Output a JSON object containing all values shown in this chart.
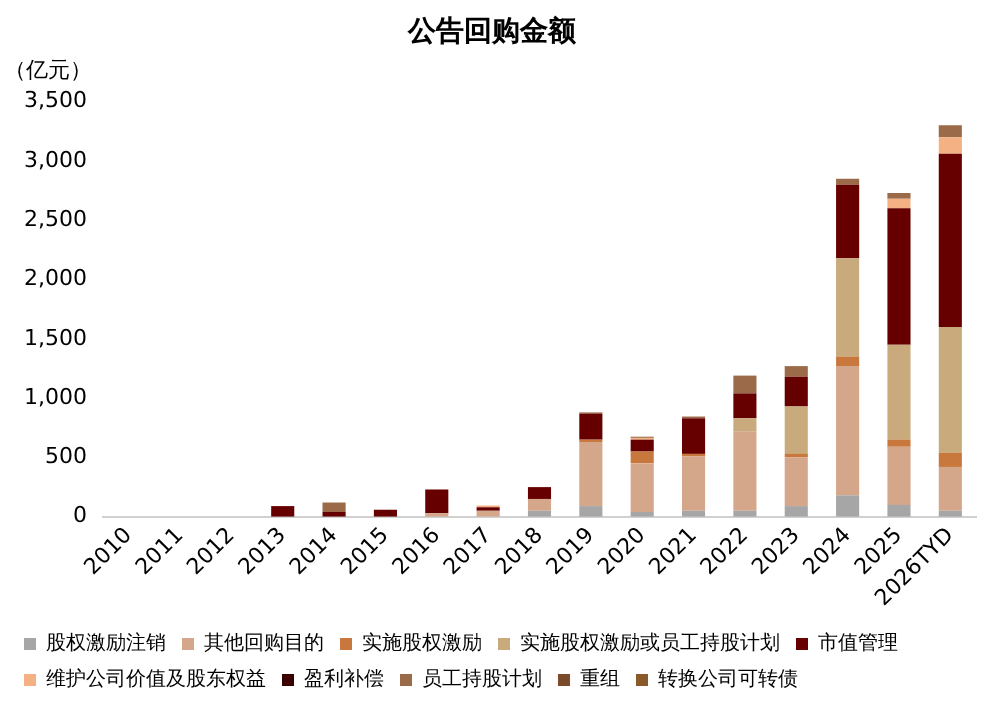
{
  "chart_data": {
    "type": "bar",
    "title": "公告回购金额",
    "ylabel": "（亿元）",
    "stacked": true,
    "grid": false,
    "legend": "bottom",
    "categories": [
      "2010",
      "2011",
      "2012",
      "2013",
      "2014",
      "2015",
      "2016",
      "2017",
      "2018",
      "2019",
      "2020",
      "2021",
      "2022",
      "2023",
      "2024",
      "2025",
      "2026TYD"
    ],
    "ylim": [
      0,
      3500
    ],
    "yticks": [
      {
        "value": 0,
        "label": "0"
      },
      {
        "value": 500,
        "label": "500"
      },
      {
        "value": 1000,
        "label": "1,000"
      },
      {
        "value": 1500,
        "label": "1,500"
      },
      {
        "value": 2000,
        "label": "2,000"
      },
      {
        "value": 2500,
        "label": "2,500"
      },
      {
        "value": 3000,
        "label": "3,000"
      },
      {
        "value": 3500,
        "label": "3,500"
      }
    ],
    "series": [
      {
        "name": "股权激励注销",
        "color": "#a6a6a6",
        "values": [
          0,
          0,
          0,
          0,
          0,
          0,
          0,
          0,
          50,
          90,
          40,
          50,
          50,
          90,
          180,
          100,
          50
        ]
      },
      {
        "name": "其他回购目的",
        "color": "#d4a68a",
        "values": [
          0,
          0,
          0,
          null,
          0,
          null,
          30,
          50,
          100,
          540,
          410,
          460,
          670,
          410,
          1090,
          490,
          370
        ]
      },
      {
        "name": "实施股权激励",
        "color": "#c8783c",
        "values": [
          0,
          0,
          0,
          0,
          0,
          0,
          0,
          0,
          0,
          20,
          100,
          20,
          0,
          30,
          80,
          60,
          120
        ]
      },
      {
        "name": "实施股权激励或员工持股计划",
        "color": "#c9aa7c",
        "values": [
          0,
          0,
          0,
          0,
          0,
          0,
          0,
          0,
          0,
          0,
          0,
          0,
          110,
          400,
          830,
          800,
          1060
        ]
      },
      {
        "name": "市值管理",
        "color": "#660000",
        "values": [
          0,
          0,
          0,
          90,
          40,
          60,
          200,
          30,
          100,
          220,
          100,
          300,
          210,
          250,
          620,
          1150,
          1460
        ]
      },
      {
        "name": "维护公司价值及股东权益",
        "color": "#f4b183",
        "values": [
          0,
          0,
          0,
          0,
          0,
          0,
          0,
          15,
          0,
          0,
          15,
          0,
          0,
          0,
          0,
          80,
          140
        ]
      },
      {
        "name": "盈利补偿",
        "color": "#3d0000",
        "values": [
          0,
          0,
          0,
          0,
          0,
          0,
          0,
          0,
          0,
          0,
          0,
          0,
          0,
          0,
          0,
          0,
          0
        ]
      },
      {
        "name": "员工持股计划",
        "color": "#9b6a48",
        "values": [
          0,
          0,
          0,
          0,
          80,
          0,
          0,
          0,
          0,
          10,
          10,
          15,
          150,
          90,
          50,
          50,
          100
        ]
      },
      {
        "name": "重组",
        "color": "#7a4a2a",
        "values": [
          0,
          0,
          0,
          0,
          0,
          0,
          0,
          0,
          0,
          0,
          0,
          0,
          0,
          0,
          0,
          0,
          0
        ]
      },
      {
        "name": "转换公司可转债",
        "color": "#8b5a2b",
        "values": [
          0,
          0,
          0,
          0,
          0,
          0,
          0,
          0,
          0,
          0,
          0,
          0,
          0,
          0,
          0,
          0,
          0
        ]
      }
    ]
  }
}
